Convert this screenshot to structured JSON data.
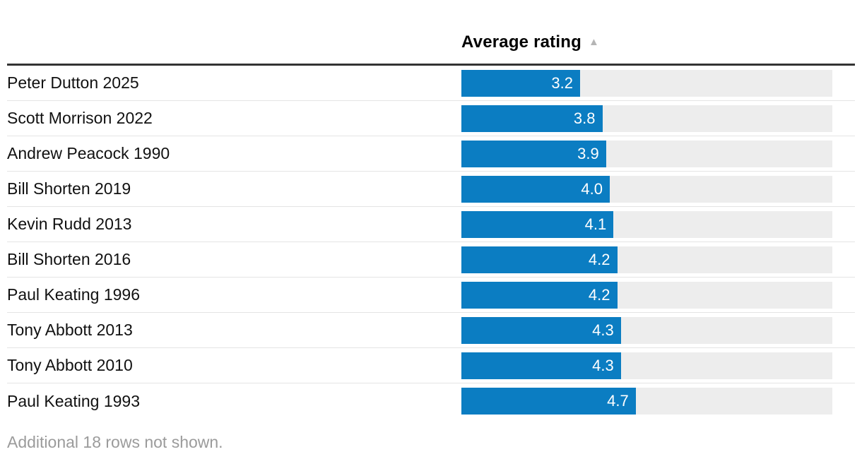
{
  "header": {
    "column_label": "Average rating",
    "sort_icon_glyph": "▲",
    "sort_direction": "ascending"
  },
  "rows": [
    {
      "label": "Peter Dutton 2025",
      "value": "3.2",
      "value_num": 3.2
    },
    {
      "label": "Scott Morrison 2022",
      "value": "3.8",
      "value_num": 3.8
    },
    {
      "label": "Andrew Peacock 1990",
      "value": "3.9",
      "value_num": 3.9
    },
    {
      "label": "Bill Shorten 2019",
      "value": "4.0",
      "value_num": 4.0
    },
    {
      "label": "Kevin Rudd 2013",
      "value": "4.1",
      "value_num": 4.1
    },
    {
      "label": "Bill Shorten 2016",
      "value": "4.2",
      "value_num": 4.2
    },
    {
      "label": "Paul Keating 1996",
      "value": "4.2",
      "value_num": 4.2
    },
    {
      "label": "Tony Abbott 2013",
      "value": "4.3",
      "value_num": 4.3
    },
    {
      "label": "Tony Abbott 2010",
      "value": "4.3",
      "value_num": 4.3
    },
    {
      "label": "Paul Keating 1993",
      "value": "4.7",
      "value_num": 4.7
    }
  ],
  "footer": {
    "note": "Additional 18 rows not shown."
  },
  "colors": {
    "bar": "#0b7dc2",
    "bar_track": "#ededed",
    "header_rule": "#333333",
    "row_divider": "#e4e4e4",
    "sort_icon": "#b5b5b5",
    "label_text": "#111111",
    "value_text": "#ffffff",
    "note_text": "#9b9b9b"
  },
  "chart_data": {
    "type": "bar",
    "orientation": "horizontal",
    "title": "Average rating",
    "sort": "ascending",
    "categories": [
      "Peter Dutton 2025",
      "Scott Morrison 2022",
      "Andrew Peacock 1990",
      "Bill Shorten 2019",
      "Kevin Rudd 2013",
      "Bill Shorten 2016",
      "Paul Keating 1996",
      "Tony Abbott 2013",
      "Tony Abbott 2010",
      "Paul Keating 1993"
    ],
    "values": [
      3.2,
      3.8,
      3.9,
      4.0,
      4.1,
      4.2,
      4.2,
      4.3,
      4.3,
      4.7
    ],
    "value_labels": [
      "3.2",
      "3.8",
      "3.9",
      "4.0",
      "4.1",
      "4.2",
      "4.2",
      "4.3",
      "4.3",
      "4.7"
    ],
    "xlabel": "",
    "ylabel": "",
    "xlim": [
      0,
      10
    ],
    "grid": false,
    "legend": false,
    "note": "Additional 18 rows not shown."
  }
}
